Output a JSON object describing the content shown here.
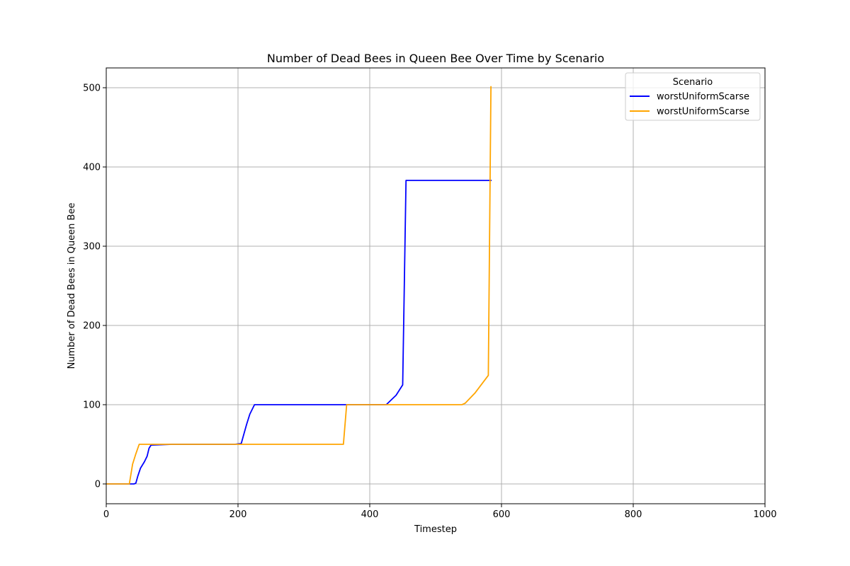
{
  "chart_data": {
    "type": "line",
    "title": "Number of Dead Bees in Queen Bee Over Time by Scenario",
    "xlabel": "Timestep",
    "ylabel": "Number of Dead Bees in Queen Bee",
    "xlim": [
      0,
      1000
    ],
    "ylim": [
      -25,
      525
    ],
    "xticks": [
      0,
      200,
      400,
      600,
      800,
      1000
    ],
    "yticks": [
      0,
      100,
      200,
      300,
      400,
      500
    ],
    "grid": true,
    "legend": {
      "title": "Scenario",
      "placement": "top-right"
    },
    "series": [
      {
        "name": "worstUniformScarse",
        "color": "#0000ff",
        "points": [
          [
            0,
            0
          ],
          [
            36,
            0
          ],
          [
            42,
            0
          ],
          [
            45,
            1
          ],
          [
            48,
            10
          ],
          [
            52,
            20
          ],
          [
            58,
            28
          ],
          [
            62,
            35
          ],
          [
            65,
            45
          ],
          [
            68,
            49
          ],
          [
            100,
            50
          ],
          [
            150,
            50
          ],
          [
            195,
            50
          ],
          [
            205,
            51
          ],
          [
            208,
            60
          ],
          [
            213,
            75
          ],
          [
            218,
            88
          ],
          [
            225,
            100
          ],
          [
            300,
            100
          ],
          [
            360,
            100
          ],
          [
            400,
            100
          ],
          [
            425,
            100
          ],
          [
            440,
            112
          ],
          [
            450,
            125
          ],
          [
            455,
            383
          ],
          [
            500,
            383
          ],
          [
            550,
            383
          ],
          [
            585,
            383
          ]
        ]
      },
      {
        "name": "worstUniformScarse",
        "color": "#ffa500",
        "points": [
          [
            0,
            0
          ],
          [
            35,
            0
          ],
          [
            40,
            25
          ],
          [
            45,
            38
          ],
          [
            50,
            50
          ],
          [
            100,
            50
          ],
          [
            150,
            50
          ],
          [
            200,
            50
          ],
          [
            300,
            50
          ],
          [
            360,
            50
          ],
          [
            365,
            100
          ],
          [
            400,
            100
          ],
          [
            450,
            100
          ],
          [
            500,
            100
          ],
          [
            540,
            100
          ],
          [
            545,
            102
          ],
          [
            560,
            115
          ],
          [
            580,
            137
          ],
          [
            584,
            502
          ]
        ]
      }
    ]
  }
}
